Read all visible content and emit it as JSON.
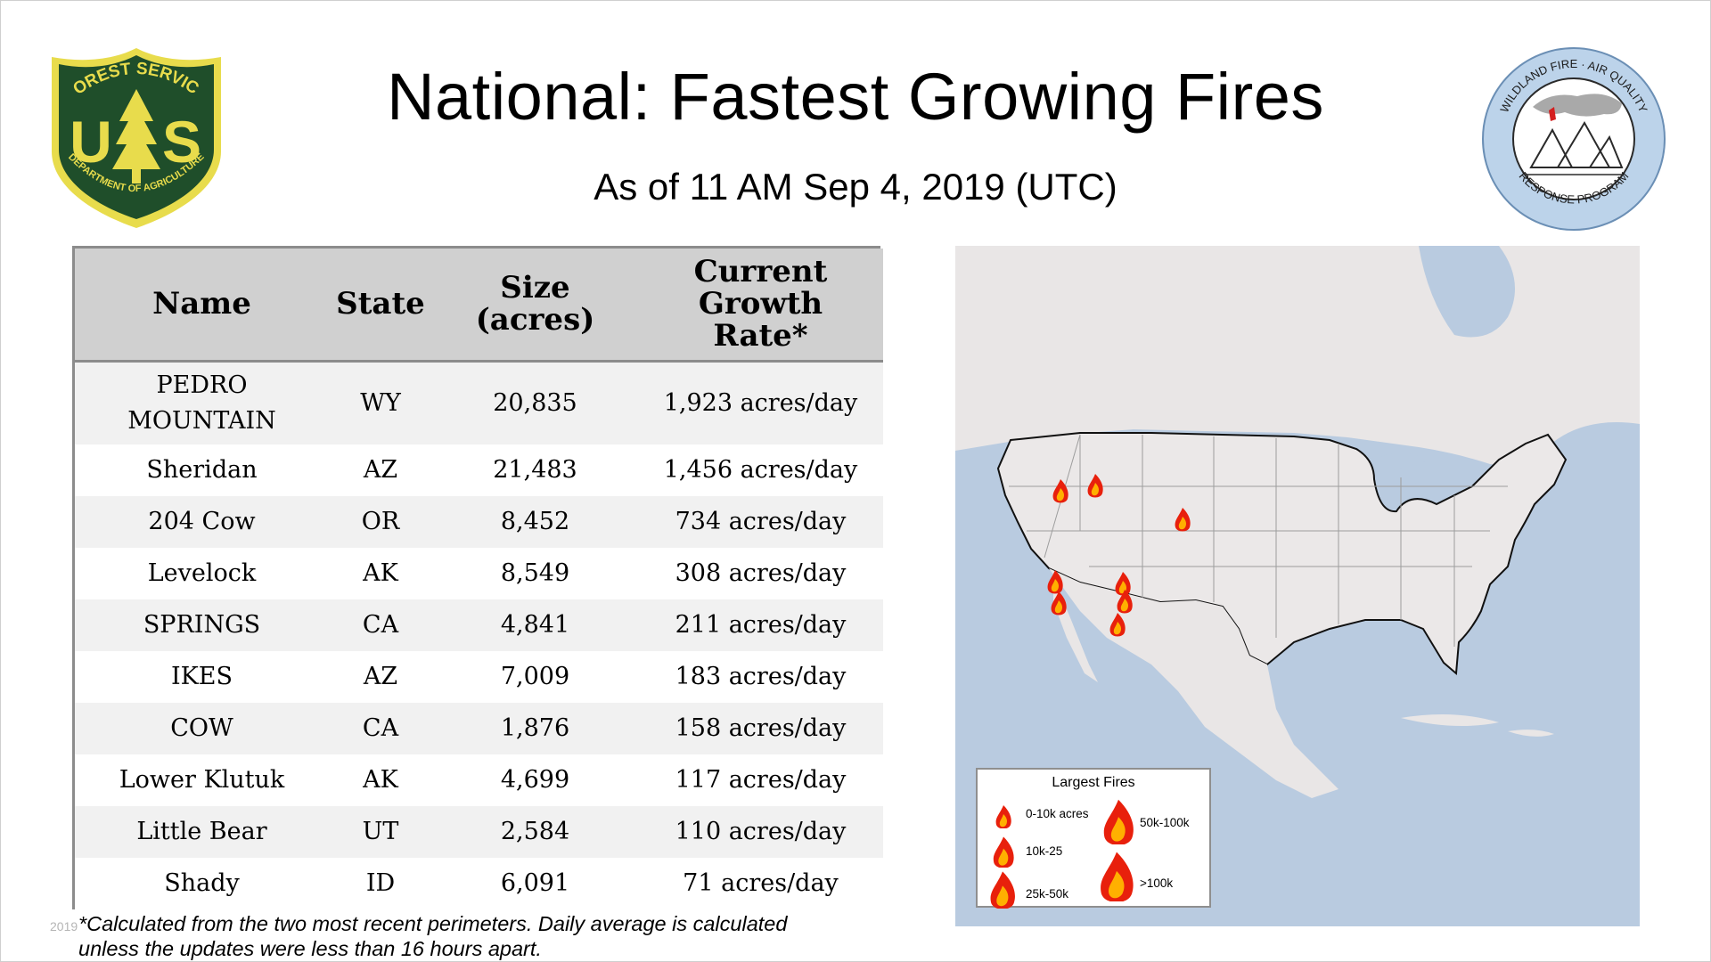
{
  "header": {
    "title": "National: Fastest Growing Fires",
    "subtitle": "As of 11 AM Sep  4, 2019 (UTC)"
  },
  "logos": {
    "left": {
      "icon": "forest-service-shield-logo",
      "top_text": "FOREST SERVICE",
      "letters_left": "U",
      "letters_right": "S",
      "bottom_text": "DEPARTMENT OF AGRICULTURE"
    },
    "right": {
      "icon": "wildland-fire-air-quality-logo",
      "top_text": "WILDLAND FIRE · AIR QUALITY",
      "bottom_text": "RESPONSE PROGRAM"
    }
  },
  "table": {
    "headers": {
      "name": "Name",
      "state": "State",
      "size": "Size (acres)",
      "rate": "Current Growth Rate*"
    },
    "rows": [
      {
        "name": "PEDRO MOUNTAIN",
        "state": "WY",
        "size": "20,835",
        "rate": "1,923 acres/day"
      },
      {
        "name": "Sheridan",
        "state": "AZ",
        "size": "21,483",
        "rate": "1,456 acres/day"
      },
      {
        "name": "204 Cow",
        "state": "OR",
        "size": "8,452",
        "rate": "734 acres/day"
      },
      {
        "name": "Levelock",
        "state": "AK",
        "size": "8,549",
        "rate": "308 acres/day"
      },
      {
        "name": "SPRINGS",
        "state": "CA",
        "size": "4,841",
        "rate": "211 acres/day"
      },
      {
        "name": "IKES",
        "state": "AZ",
        "size": "7,009",
        "rate": "183 acres/day"
      },
      {
        "name": "COW",
        "state": "CA",
        "size": "1,876",
        "rate": "158 acres/day"
      },
      {
        "name": "Lower Klutuk",
        "state": "AK",
        "size": "4,699",
        "rate": "117 acres/day"
      },
      {
        "name": "Little Bear",
        "state": "UT",
        "size": "2,584",
        "rate": "110 acres/day"
      },
      {
        "name": "Shady",
        "state": "ID",
        "size": "6,091",
        "rate": "71 acres/day"
      }
    ]
  },
  "footnote": "*Calculated from the two most recent perimeters. Daily average is calculated unless the updates were less than 16 hours apart.",
  "watermark": "2019",
  "map": {
    "legend": {
      "title": "Largest Fires",
      "items": [
        {
          "label": "0-10k acres"
        },
        {
          "label": "10k-25"
        },
        {
          "label": "25k-50k"
        },
        {
          "label": "50k-100k"
        },
        {
          "label": ">100k"
        }
      ]
    },
    "colors": {
      "water": "#b9cbe0",
      "land": "#eae7e7",
      "flame_outer": "#e8200c",
      "flame_inner": "#ffb000"
    }
  }
}
